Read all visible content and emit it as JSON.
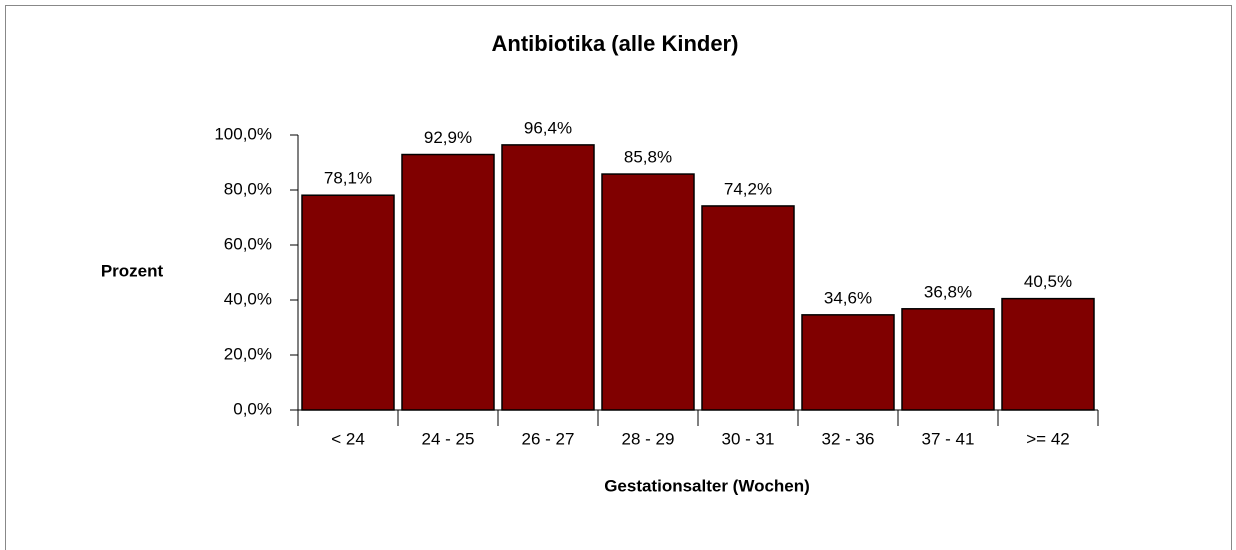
{
  "chart_data": {
    "type": "bar",
    "title": "Antibiotika (alle Kinder)",
    "y_label": "Prozent",
    "x_label": "Gestationsalter (Wochen)",
    "categories": [
      "< 24",
      "24 - 25",
      "26 - 27",
      "28 - 29",
      "30 - 31",
      "32 - 36",
      "37 - 41",
      ">= 42"
    ],
    "values": [
      78.1,
      92.9,
      96.4,
      85.8,
      74.2,
      34.6,
      36.8,
      40.5
    ],
    "value_labels": [
      "78,1%",
      "92,9%",
      "96,4%",
      "85,8%",
      "74,2%",
      "34,6%",
      "36,8%",
      "40,5%"
    ],
    "color": "#800000",
    "ylim": [
      0,
      100
    ],
    "yticks": [
      {
        "value": 0,
        "label": "0,0%"
      },
      {
        "value": 20,
        "label": "20,0%"
      },
      {
        "value": 40,
        "label": "40,0%"
      },
      {
        "value": 60,
        "label": "60,0%"
      },
      {
        "value": 80,
        "label": "80,0%"
      },
      {
        "value": 100,
        "label": "100,0%"
      }
    ],
    "grid": false
  }
}
